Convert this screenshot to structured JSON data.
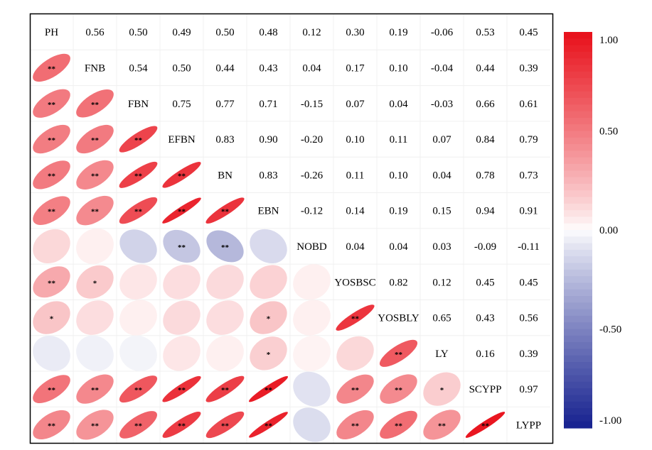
{
  "chart_data": {
    "type": "heatmap",
    "variables": [
      "PH",
      "FNB",
      "FBN",
      "EFBN",
      "BN",
      "EBN",
      "NOBD",
      "YOSBSC",
      "YOSBLY",
      "LY",
      "SCYPP",
      "LYPP"
    ],
    "correlations": [
      [
        1.0,
        0.56,
        0.5,
        0.49,
        0.5,
        0.48,
        0.12,
        0.3,
        0.19,
        -0.06,
        0.53,
        0.45
      ],
      [
        0.56,
        1.0,
        0.54,
        0.5,
        0.44,
        0.43,
        0.04,
        0.17,
        0.1,
        -0.04,
        0.44,
        0.39
      ],
      [
        0.5,
        0.54,
        1.0,
        0.75,
        0.77,
        0.71,
        -0.15,
        0.07,
        0.04,
        -0.03,
        0.66,
        0.61
      ],
      [
        0.49,
        0.5,
        0.75,
        1.0,
        0.83,
        0.9,
        -0.2,
        0.1,
        0.11,
        0.07,
        0.84,
        0.79
      ],
      [
        0.5,
        0.44,
        0.77,
        0.83,
        1.0,
        0.83,
        -0.26,
        0.11,
        0.1,
        0.04,
        0.78,
        0.73
      ],
      [
        0.48,
        0.43,
        0.71,
        0.9,
        0.83,
        1.0,
        -0.12,
        0.14,
        0.19,
        0.15,
        0.94,
        0.91
      ],
      [
        0.12,
        0.04,
        -0.15,
        -0.2,
        -0.26,
        -0.12,
        1.0,
        0.04,
        0.04,
        0.03,
        -0.09,
        -0.11
      ],
      [
        0.3,
        0.17,
        0.07,
        0.1,
        0.11,
        0.14,
        0.04,
        1.0,
        0.82,
        0.12,
        0.45,
        0.45
      ],
      [
        0.19,
        0.1,
        0.04,
        0.11,
        0.1,
        0.19,
        0.04,
        0.82,
        1.0,
        0.65,
        0.43,
        0.56
      ],
      [
        -0.06,
        -0.04,
        -0.03,
        0.07,
        0.04,
        0.15,
        0.03,
        0.12,
        0.65,
        1.0,
        0.16,
        0.39
      ],
      [
        0.53,
        0.44,
        0.66,
        0.84,
        0.78,
        0.94,
        -0.09,
        0.45,
        0.43,
        0.16,
        1.0,
        0.97
      ],
      [
        0.45,
        0.39,
        0.61,
        0.79,
        0.73,
        0.91,
        -0.11,
        0.45,
        0.56,
        0.39,
        0.97,
        1.0
      ]
    ],
    "upper_labels": [
      [
        "",
        "0.56",
        "0.50",
        "0.49",
        "0.50",
        "0.48",
        "0.12",
        "0.30",
        "0.19",
        "-0.06",
        "0.53",
        "0.45"
      ],
      [
        "",
        "",
        "0.54",
        "0.50",
        "0.44",
        "0.43",
        "0.04",
        "0.17",
        "0.10",
        "-0.04",
        "0.44",
        "0.39"
      ],
      [
        "",
        "",
        "",
        "0.75",
        "0.77",
        "0.71",
        "-0.15",
        "0.07",
        "0.04",
        "-0.03",
        "0.66",
        "0.61"
      ],
      [
        "",
        "",
        "",
        "",
        "0.83",
        "0.90",
        "-0.20",
        "0.10",
        "0.11",
        "0.07",
        "0.84",
        "0.79"
      ],
      [
        "",
        "",
        "",
        "",
        "",
        "0.83",
        "-0.26",
        "0.11",
        "0.10",
        "0.04",
        "0.78",
        "0.73"
      ],
      [
        "",
        "",
        "",
        "",
        "",
        "",
        "-0.12",
        "0.14",
        "0.19",
        "0.15",
        "0.94",
        "0.91"
      ],
      [
        "",
        "",
        "",
        "",
        "",
        "",
        "",
        "0.04",
        "0.04",
        "0.03",
        "-0.09",
        "-0.11"
      ],
      [
        "",
        "",
        "",
        "",
        "",
        "",
        "",
        "",
        "0.82",
        "0.12",
        "0.45",
        "0.45"
      ],
      [
        "",
        "",
        "",
        "",
        "",
        "",
        "",
        "",
        "",
        "0.65",
        "0.43",
        "0.56"
      ],
      [
        "",
        "",
        "",
        "",
        "",
        "",
        "",
        "",
        "",
        "",
        "0.16",
        "0.39"
      ],
      [
        "",
        "",
        "",
        "",
        "",
        "",
        "",
        "",
        "",
        "",
        "",
        "0.97"
      ],
      [
        "",
        "",
        "",
        "",
        "",
        "",
        "",
        "",
        "",
        "",
        "",
        ""
      ]
    ],
    "significance": [
      [
        "",
        "",
        "",
        "",
        "",
        "",
        "",
        "",
        "",
        "",
        "",
        ""
      ],
      [
        "**",
        "",
        "",
        "",
        "",
        "",
        "",
        "",
        "",
        "",
        "",
        ""
      ],
      [
        "**",
        "**",
        "",
        "",
        "",
        "",
        "",
        "",
        "",
        "",
        "",
        ""
      ],
      [
        "**",
        "**",
        "**",
        "",
        "",
        "",
        "",
        "",
        "",
        "",
        "",
        ""
      ],
      [
        "**",
        "**",
        "**",
        "**",
        "",
        "",
        "",
        "",
        "",
        "",
        "",
        ""
      ],
      [
        "**",
        "**",
        "**",
        "**",
        "**",
        "",
        "",
        "",
        "",
        "",
        "",
        ""
      ],
      [
        "",
        "",
        "",
        "**",
        "**",
        "",
        "",
        "",
        "",
        "",
        "",
        ""
      ],
      [
        "**",
        "*",
        "",
        "",
        "",
        "",
        "",
        "",
        "",
        "",
        "",
        ""
      ],
      [
        "*",
        "",
        "",
        "",
        "",
        "*",
        "",
        "**",
        "",
        "",
        "",
        ""
      ],
      [
        "",
        "",
        "",
        "",
        "",
        "*",
        "",
        "",
        "**",
        "",
        "",
        ""
      ],
      [
        "**",
        "**",
        "**",
        "**",
        "**",
        "**",
        "",
        "**",
        "**",
        "*",
        "",
        ""
      ],
      [
        "**",
        "**",
        "**",
        "**",
        "**",
        "**",
        "",
        "**",
        "**",
        "**",
        "**",
        ""
      ]
    ],
    "colorbar": {
      "range": [
        -1,
        1
      ],
      "ticks": [
        "1.00",
        "0.50",
        "0.00",
        "-0.50",
        "-1.00"
      ],
      "tick_values": [
        1,
        0.5,
        0,
        -0.5,
        -1
      ],
      "high_color": "#e8101a",
      "mid_color": "#ffffff",
      "low_color": "#16218f"
    },
    "grid": true,
    "legend_position": "right"
  }
}
